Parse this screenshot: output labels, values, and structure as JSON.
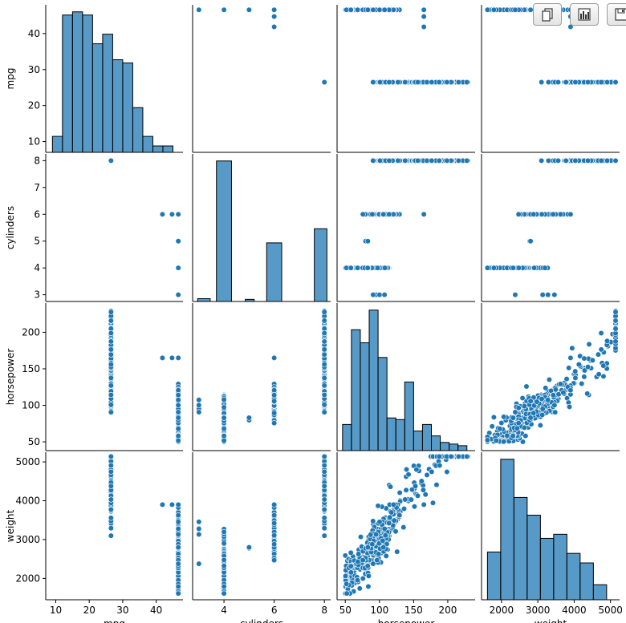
{
  "chart_data": {
    "type": "pairplot",
    "variables": [
      "mpg",
      "cylinders",
      "horsepower",
      "weight"
    ],
    "axes": {
      "mpg": {
        "range": [
          7,
          48
        ],
        "ticks": [
          10,
          20,
          30,
          40
        ],
        "tick_labels": [
          "10",
          "20",
          "30",
          "40"
        ],
        "label": "mpg"
      },
      "cylinders": {
        "range": [
          2.75,
          8.25
        ],
        "ticks": [
          3,
          4,
          5,
          6,
          7,
          8
        ],
        "tick_labels": [
          "3",
          "4",
          "5",
          "6",
          "7",
          "8"
        ],
        "x_ticks": [
          4,
          6,
          8
        ],
        "x_tick_labels": [
          "4",
          "6",
          "8"
        ],
        "label": "cylinders"
      },
      "horsepower": {
        "range": [
          38,
          240
        ],
        "ticks": [
          50,
          100,
          150,
          200
        ],
        "tick_labels": [
          "50",
          "100",
          "150",
          "200"
        ],
        "label": "horsepower"
      },
      "weight": {
        "range": [
          1450,
          5250
        ],
        "ticks": [
          2000,
          3000,
          4000,
          5000
        ],
        "tick_labels": [
          "2000",
          "3000",
          "4000",
          "5000"
        ],
        "label": "weight"
      }
    },
    "histograms": {
      "mpg": {
        "edges": [
          9,
          12,
          15,
          18,
          21,
          24,
          27,
          30,
          33,
          36,
          39,
          42,
          45
        ],
        "counts": [
          5,
          43,
          44,
          43,
          34,
          37,
          29,
          28,
          14,
          5,
          2,
          2
        ]
      },
      "cylinders": {
        "bars": [
          {
            "x0": 2.95,
            "x1": 3.45,
            "count": 4
          },
          {
            "x0": 3.7,
            "x1": 4.3,
            "count": 199
          },
          {
            "x0": 4.85,
            "x1": 5.2,
            "count": 3
          },
          {
            "x0": 5.7,
            "x1": 6.3,
            "count": 83
          },
          {
            "x0": 7.6,
            "x1": 8.1,
            "count": 103
          }
        ]
      },
      "horsepower": {
        "edges": [
          46,
          59,
          72,
          85,
          98,
          111,
          124,
          137,
          150,
          163,
          176,
          189,
          202,
          215,
          228
        ],
        "counts": [
          16,
          74,
          66,
          86,
          57,
          20,
          19,
          42,
          12,
          16,
          9,
          5,
          4,
          3
        ]
      },
      "weight": {
        "edges": [
          1613,
          1977,
          2342,
          2706,
          3071,
          3435,
          3800,
          4164,
          4529,
          4893
        ],
        "counts": [
          35,
          103,
          75,
          62,
          45,
          48,
          34,
          27,
          11
        ]
      }
    },
    "color": "#1f77b4"
  },
  "toolbar": {
    "buttons": [
      "copy-icon",
      "chart-icon",
      "save-icon"
    ]
  }
}
